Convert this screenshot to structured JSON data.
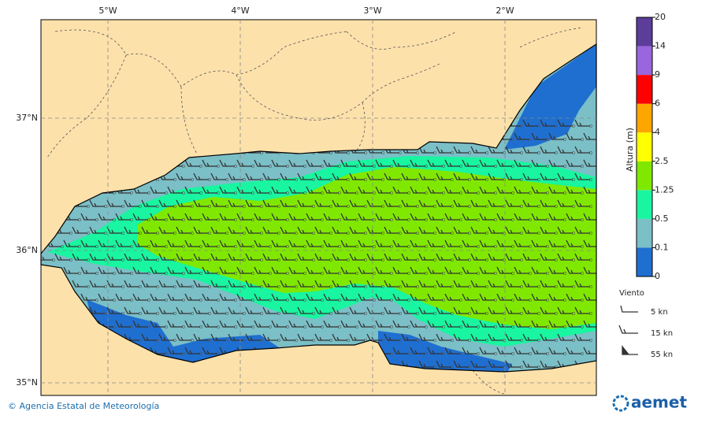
{
  "map": {
    "longitude_labels": [
      "5°W",
      "4°W",
      "3°W",
      "2°W"
    ],
    "latitude_labels": [
      "37°N",
      "36°N",
      "35°N"
    ],
    "land_color": "#fde1ab",
    "colorbar": {
      "title": "Altura (m)",
      "levels": [
        0,
        0.1,
        0.5,
        1.25,
        2.5,
        4,
        6,
        9,
        14,
        20
      ],
      "colors": [
        "#1f6fd1",
        "#7bbfc7",
        "#19f5a0",
        "#80e800",
        "#ffff00",
        "#ffa500",
        "#ff0000",
        "#9966dd",
        "#5c3d99"
      ]
    },
    "wind_legend": {
      "title": "Viento",
      "entries": [
        "5 kn",
        "15 kn",
        "55 kn"
      ]
    },
    "footer": {
      "credit": "© Agencia Estatal de Meteorología",
      "logo": "aemet"
    }
  }
}
